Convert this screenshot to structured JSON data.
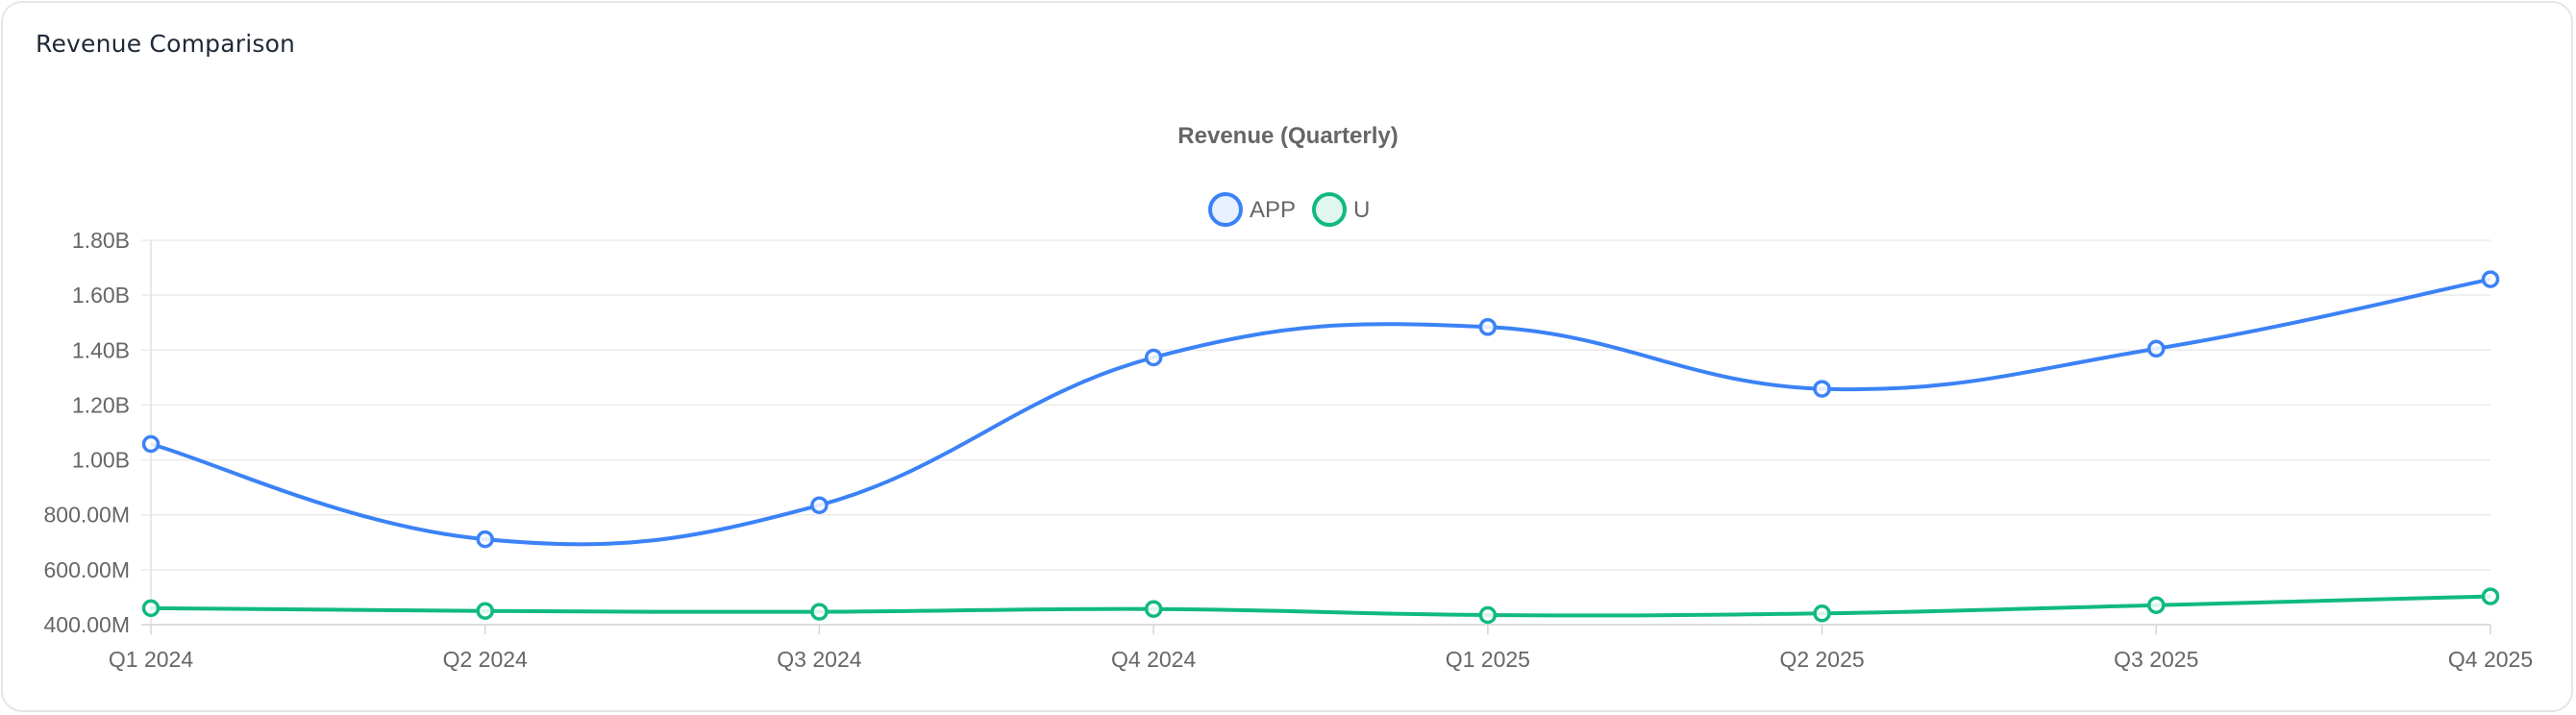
{
  "card": {
    "title": "Revenue Comparison"
  },
  "chart_data": {
    "type": "line",
    "title": "Revenue (Quarterly)",
    "categories": [
      "Q1 2024",
      "Q2 2024",
      "Q3 2024",
      "Q4 2024",
      "Q1 2025",
      "Q2 2025",
      "Q3 2025",
      "Q4 2025"
    ],
    "series": [
      {
        "name": "APP",
        "color": "#3b82f6",
        "values": [
          1058000000,
          711000000,
          835000000,
          1373000000,
          1484000000,
          1259000000,
          1405000000,
          1658000000
        ]
      },
      {
        "name": "U",
        "color": "#10b981",
        "values": [
          460000000,
          450000000,
          447000000,
          457000000,
          435000000,
          441000000,
          471000000,
          503000000
        ]
      }
    ],
    "y_ticks": [
      "1.80B",
      "1.60B",
      "1.40B",
      "1.20B",
      "1.00B",
      "800.00M",
      "600.00M",
      "400.00M"
    ],
    "ylim": [
      400000000,
      1800000000
    ],
    "legend_position": "top-center",
    "grid": true
  }
}
